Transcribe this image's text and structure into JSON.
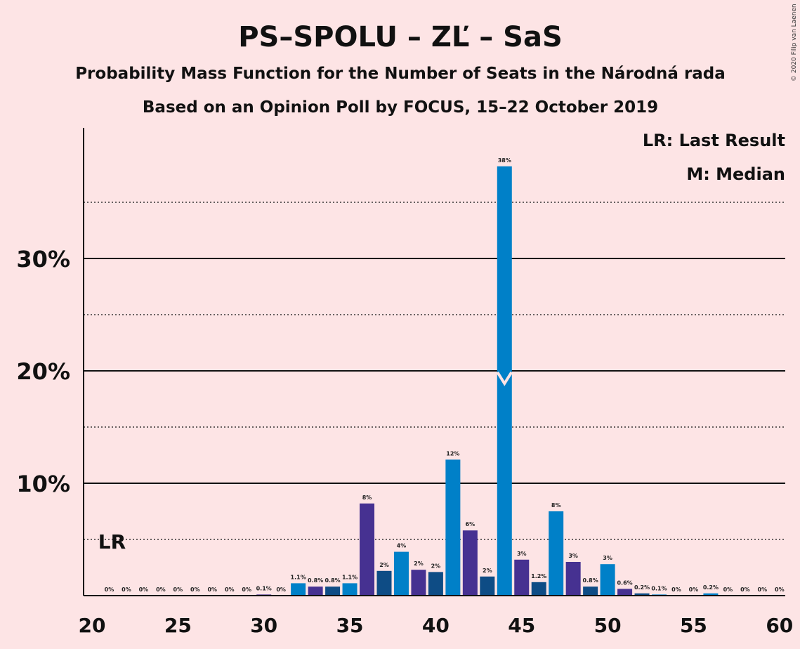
{
  "title": "PS–SPOLU – ZĽ – SaS",
  "subtitle1": "Probability Mass Function for the Number of Seats in the Národná rada",
  "subtitle2": "Based on an Opinion Poll by FOCUS, 15–22 October 2019",
  "copyright": "© 2020 Filip van Laenen",
  "legend": {
    "lr": "LR: Last Result",
    "m": "M: Median"
  },
  "lr_marker": {
    "label": "LR",
    "seat": 21
  },
  "median_marker": {
    "label": "M",
    "seat": 44
  },
  "colors": {
    "background": "#FDE4E5",
    "purple": "#463191",
    "light_blue": "#0080C8",
    "dark_blue": "#0E4C85"
  },
  "chart_data": {
    "type": "bar",
    "xlim": [
      20,
      60
    ],
    "ylim": [
      0,
      40
    ],
    "yunit": "%",
    "x_ticks": [
      20,
      25,
      30,
      35,
      40,
      45,
      50,
      55,
      60
    ],
    "y_ticks_labeled": [
      10,
      20,
      30
    ],
    "y_ticks_labels": [
      "10%",
      "20%",
      "30%"
    ],
    "y_minor_gridlines": [
      5,
      15,
      25,
      35
    ],
    "bars": [
      {
        "seat": 21,
        "value": 0,
        "label": "0%",
        "color": "purple"
      },
      {
        "seat": 22,
        "value": 0,
        "label": "0%",
        "color": "light_blue"
      },
      {
        "seat": 23,
        "value": 0,
        "label": "0%",
        "color": "dark_blue"
      },
      {
        "seat": 24,
        "value": 0,
        "label": "0%",
        "color": "purple"
      },
      {
        "seat": 25,
        "value": 0,
        "label": "0%",
        "color": "light_blue"
      },
      {
        "seat": 26,
        "value": 0,
        "label": "0%",
        "color": "dark_blue"
      },
      {
        "seat": 27,
        "value": 0,
        "label": "0%",
        "color": "purple"
      },
      {
        "seat": 28,
        "value": 0,
        "label": "0%",
        "color": "light_blue"
      },
      {
        "seat": 29,
        "value": 0,
        "label": "0%",
        "color": "dark_blue"
      },
      {
        "seat": 30,
        "value": 0.1,
        "label": "0.1%",
        "color": "purple"
      },
      {
        "seat": 31,
        "value": 0,
        "label": "0%",
        "color": "light_blue"
      },
      {
        "seat": 32,
        "value": 1.1,
        "label": "1.1%",
        "color": "light_blue"
      },
      {
        "seat": 33,
        "value": 0.8,
        "label": "0.8%",
        "color": "purple"
      },
      {
        "seat": 34,
        "value": 0.8,
        "label": "0.8%",
        "color": "dark_blue"
      },
      {
        "seat": 35,
        "value": 1.1,
        "label": "1.1%",
        "color": "light_blue"
      },
      {
        "seat": 36,
        "value": 8.2,
        "label": "8%",
        "color": "purple"
      },
      {
        "seat": 37,
        "value": 2.2,
        "label": "2%",
        "color": "dark_blue"
      },
      {
        "seat": 38,
        "value": 3.9,
        "label": "4%",
        "color": "light_blue"
      },
      {
        "seat": 39,
        "value": 2.3,
        "label": "2%",
        "color": "purple"
      },
      {
        "seat": 40,
        "value": 2.1,
        "label": "2%",
        "color": "dark_blue"
      },
      {
        "seat": 41,
        "value": 12.1,
        "label": "12%",
        "color": "light_blue"
      },
      {
        "seat": 42,
        "value": 5.8,
        "label": "6%",
        "color": "purple"
      },
      {
        "seat": 43,
        "value": 1.7,
        "label": "2%",
        "color": "dark_blue"
      },
      {
        "seat": 44,
        "value": 38.2,
        "label": "38%",
        "color": "light_blue"
      },
      {
        "seat": 45,
        "value": 3.2,
        "label": "3%",
        "color": "purple"
      },
      {
        "seat": 46,
        "value": 1.2,
        "label": "1.2%",
        "color": "dark_blue"
      },
      {
        "seat": 47,
        "value": 7.5,
        "label": "8%",
        "color": "light_blue"
      },
      {
        "seat": 48,
        "value": 3.0,
        "label": "3%",
        "color": "purple"
      },
      {
        "seat": 49,
        "value": 0.8,
        "label": "0.8%",
        "color": "dark_blue"
      },
      {
        "seat": 50,
        "value": 2.8,
        "label": "3%",
        "color": "light_blue"
      },
      {
        "seat": 51,
        "value": 0.6,
        "label": "0.6%",
        "color": "purple"
      },
      {
        "seat": 52,
        "value": 0.2,
        "label": "0.2%",
        "color": "dark_blue"
      },
      {
        "seat": 53,
        "value": 0.1,
        "label": "0.1%",
        "color": "light_blue"
      },
      {
        "seat": 54,
        "value": 0,
        "label": "0%",
        "color": "purple"
      },
      {
        "seat": 55,
        "value": 0,
        "label": "0%",
        "color": "dark_blue"
      },
      {
        "seat": 56,
        "value": 0.2,
        "label": "0.2%",
        "color": "light_blue"
      },
      {
        "seat": 57,
        "value": 0,
        "label": "0%",
        "color": "purple"
      },
      {
        "seat": 58,
        "value": 0,
        "label": "0%",
        "color": "dark_blue"
      },
      {
        "seat": 59,
        "value": 0,
        "label": "0%",
        "color": "light_blue"
      },
      {
        "seat": 60,
        "value": 0,
        "label": "0%",
        "color": "purple"
      }
    ]
  }
}
